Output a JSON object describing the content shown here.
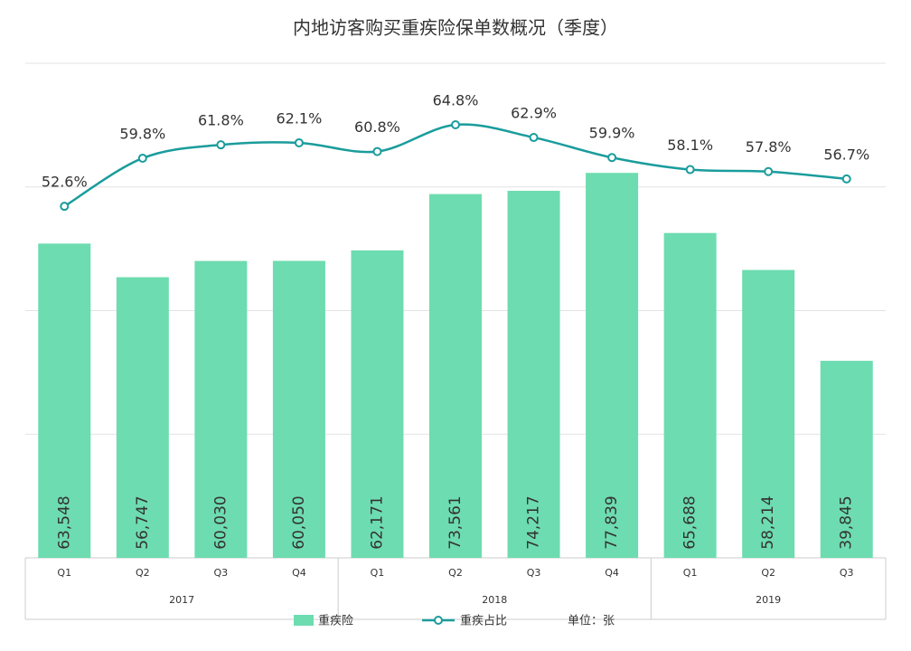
{
  "chart_data": {
    "type": "bar_line",
    "title": "内地访客购买重疾险保单数概况（季度）",
    "groups": [
      {
        "name": "2017",
        "categories": [
          "Q1",
          "Q2",
          "Q3",
          "Q4"
        ]
      },
      {
        "name": "2018",
        "categories": [
          "Q1",
          "Q2",
          "Q3",
          "Q4"
        ]
      },
      {
        "name": "2019",
        "categories": [
          "Q1",
          "Q2",
          "Q3"
        ]
      }
    ],
    "series": [
      {
        "name": "重疾险",
        "type": "bar",
        "color": "#6ddcb0",
        "values": [
          63548,
          56747,
          60030,
          60050,
          62171,
          73561,
          74217,
          77839,
          65688,
          58214,
          39845
        ],
        "value_labels": [
          "63,548",
          "56,747",
          "60,030",
          "60,050",
          "62,171",
          "73,561",
          "74,217",
          "77,839",
          "65,688",
          "58,214",
          "39,845"
        ]
      },
      {
        "name": "重疾占比",
        "type": "line",
        "axis": "y2",
        "color": "#1a9c9c",
        "values": [
          52.6,
          59.8,
          61.8,
          62.1,
          60.8,
          64.8,
          62.9,
          59.9,
          58.1,
          57.8,
          56.7
        ],
        "value_labels": [
          "52.6%",
          "59.8%",
          "61.8%",
          "62.1%",
          "60.8%",
          "64.8%",
          "62.9%",
          "59.9%",
          "58.1%",
          "57.8%",
          "56.7%"
        ]
      }
    ],
    "ylim": [
      0,
      100000
    ],
    "yticks": [
      0,
      25000,
      50000,
      75000,
      100000
    ],
    "y2lim": [
      0,
      74
    ],
    "grid": true,
    "unit_label": "单位：张"
  }
}
